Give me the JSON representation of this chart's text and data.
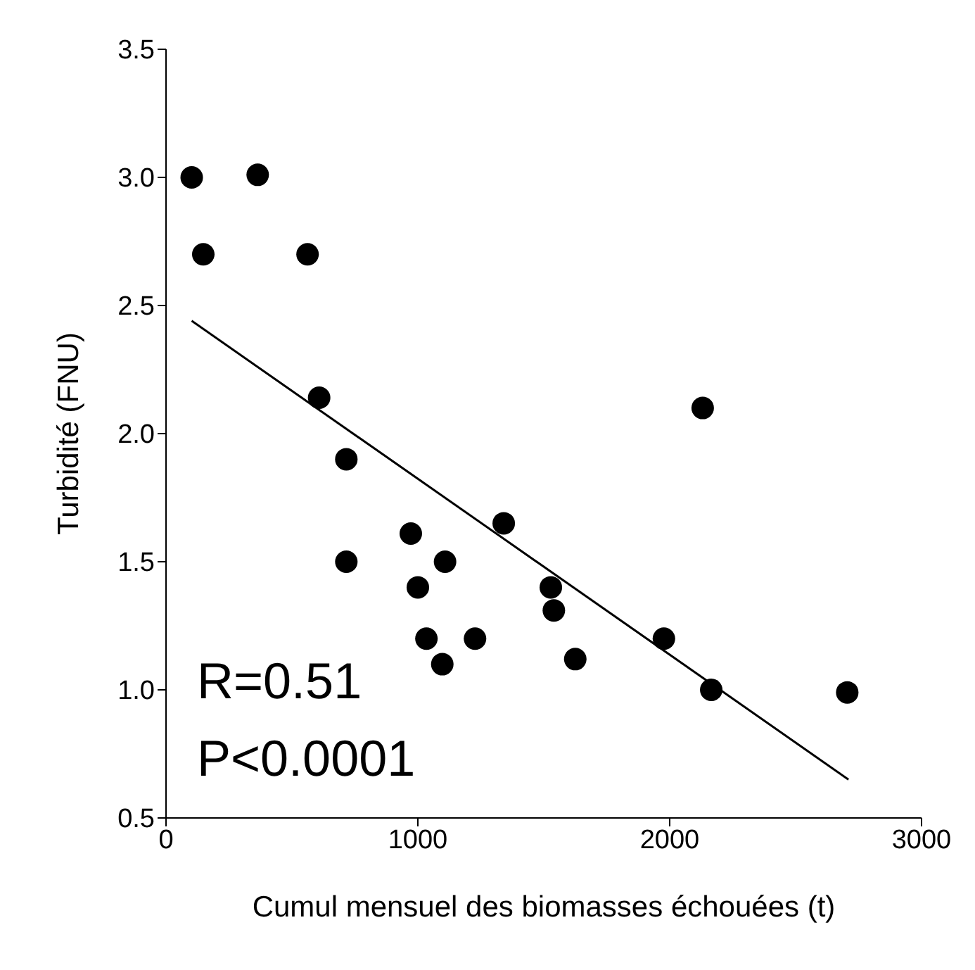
{
  "chart_data": {
    "type": "scatter",
    "xlabel": "Cumul mensuel des biomasses échouées (t)",
    "ylabel": "Turbidité (FNU)",
    "xlim": [
      0,
      3000
    ],
    "xticks": [
      0,
      1000,
      2000,
      3000
    ],
    "ylim": [
      0.5,
      3.5
    ],
    "yticks": [
      {
        "value": 0.5,
        "label": "0.5"
      },
      {
        "value": 1,
        "label": "1.0"
      },
      {
        "value": 1.5,
        "label": "1.5"
      },
      {
        "value": 2,
        "label": "2.0"
      },
      {
        "value": 2.5,
        "label": "2.5"
      },
      {
        "value": 3,
        "label": "3.0"
      },
      {
        "value": 3.5,
        "label": "3.5"
      }
    ],
    "grid": false,
    "legend": false,
    "marker": "circle",
    "series": [
      {
        "color": "#000000",
        "x": [
          102,
          148,
          364,
          562,
          608,
          716,
          716,
          972,
          1000,
          1034,
          1108,
          1097,
          1227,
          1341,
          1528,
          1540,
          1625,
          1977,
          2131,
          2165,
          2705
        ],
        "values": [
          3.0,
          2.7,
          3.01,
          2.7,
          2.14,
          1.9,
          1.5,
          1.61,
          1.4,
          1.2,
          1.5,
          1.1,
          1.2,
          1.65,
          1.4,
          1.31,
          1.12,
          1.2,
          2.1,
          1.0,
          0.99
        ]
      },
      {
        "type": "line",
        "marker": "none",
        "color": "#000000",
        "x": [
          102,
          2710
        ],
        "values": [
          2.44,
          0.65
        ]
      }
    ],
    "annotations": [
      "R=0.51",
      "P<0.0001"
    ]
  }
}
